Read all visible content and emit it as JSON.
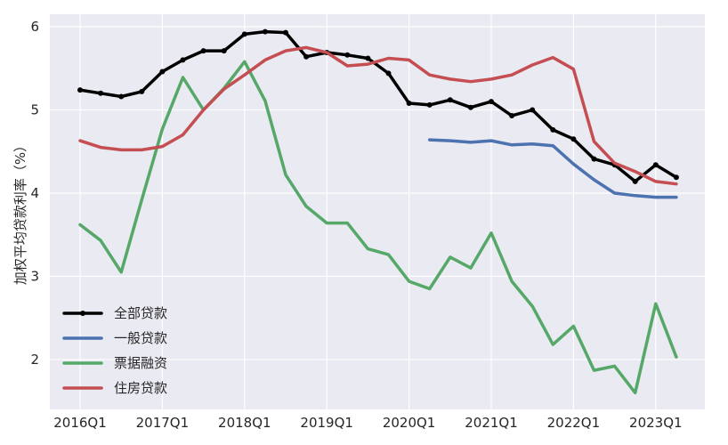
{
  "chart_data": {
    "type": "line",
    "title": "",
    "xlabel": "",
    "ylabel": "加权平均贷款利率（%）",
    "ylim": [
      1.4,
      6.15
    ],
    "yticks": [
      2,
      3,
      4,
      5,
      6
    ],
    "xticks": [
      "2016Q1",
      "2017Q1",
      "2018Q1",
      "2019Q1",
      "2020Q1",
      "2021Q1",
      "2022Q1",
      "2023Q1"
    ],
    "x": [
      "2016Q1",
      "2016Q2",
      "2016Q3",
      "2016Q4",
      "2017Q1",
      "2017Q2",
      "2017Q3",
      "2017Q4",
      "2018Q1",
      "2018Q2",
      "2018Q3",
      "2018Q4",
      "2019Q1",
      "2019Q2",
      "2019Q3",
      "2019Q4",
      "2020Q1",
      "2020Q2",
      "2020Q3",
      "2020Q4",
      "2021Q1",
      "2021Q2",
      "2021Q3",
      "2021Q4",
      "2022Q1",
      "2022Q2",
      "2022Q3",
      "2022Q4",
      "2023Q1",
      "2023Q2"
    ],
    "grid": true,
    "legend_position": "lower-left",
    "series": [
      {
        "name": "全部贷款",
        "color": "#000000",
        "marker": true,
        "values": [
          5.24,
          5.2,
          5.16,
          5.22,
          5.46,
          5.6,
          5.71,
          5.71,
          5.91,
          5.94,
          5.93,
          5.64,
          5.69,
          5.66,
          5.62,
          5.44,
          5.08,
          5.06,
          5.12,
          5.03,
          5.1,
          4.93,
          5.0,
          4.76,
          4.65,
          4.41,
          4.34,
          4.14,
          4.34,
          4.19
        ]
      },
      {
        "name": "一般贷款",
        "color": "#4c72b0",
        "marker": false,
        "values": [
          null,
          null,
          null,
          null,
          null,
          null,
          null,
          null,
          null,
          null,
          null,
          null,
          null,
          null,
          null,
          null,
          null,
          4.64,
          4.63,
          4.61,
          4.63,
          4.58,
          4.59,
          4.57,
          4.35,
          4.16,
          4.0,
          3.97,
          3.95,
          3.95
        ]
      },
      {
        "name": "票据融资",
        "color": "#55a868",
        "marker": false,
        "values": [
          3.62,
          3.43,
          3.05,
          3.92,
          4.77,
          5.39,
          5.0,
          5.26,
          5.58,
          5.11,
          4.22,
          3.84,
          3.64,
          3.64,
          3.33,
          3.26,
          2.94,
          2.85,
          3.23,
          3.1,
          3.52,
          2.94,
          2.64,
          2.18,
          2.4,
          1.87,
          1.92,
          1.6,
          2.67,
          2.03
        ]
      },
      {
        "name": "住房贷款",
        "color": "#c44e52",
        "marker": false,
        "values": [
          4.63,
          4.55,
          4.52,
          4.52,
          4.56,
          4.7,
          5.0,
          5.25,
          5.42,
          5.6,
          5.71,
          5.75,
          5.69,
          5.53,
          5.55,
          5.62,
          5.6,
          5.42,
          5.37,
          5.34,
          5.37,
          5.42,
          5.54,
          5.63,
          5.49,
          4.62,
          4.36,
          4.26,
          4.14,
          4.11
        ]
      }
    ]
  }
}
